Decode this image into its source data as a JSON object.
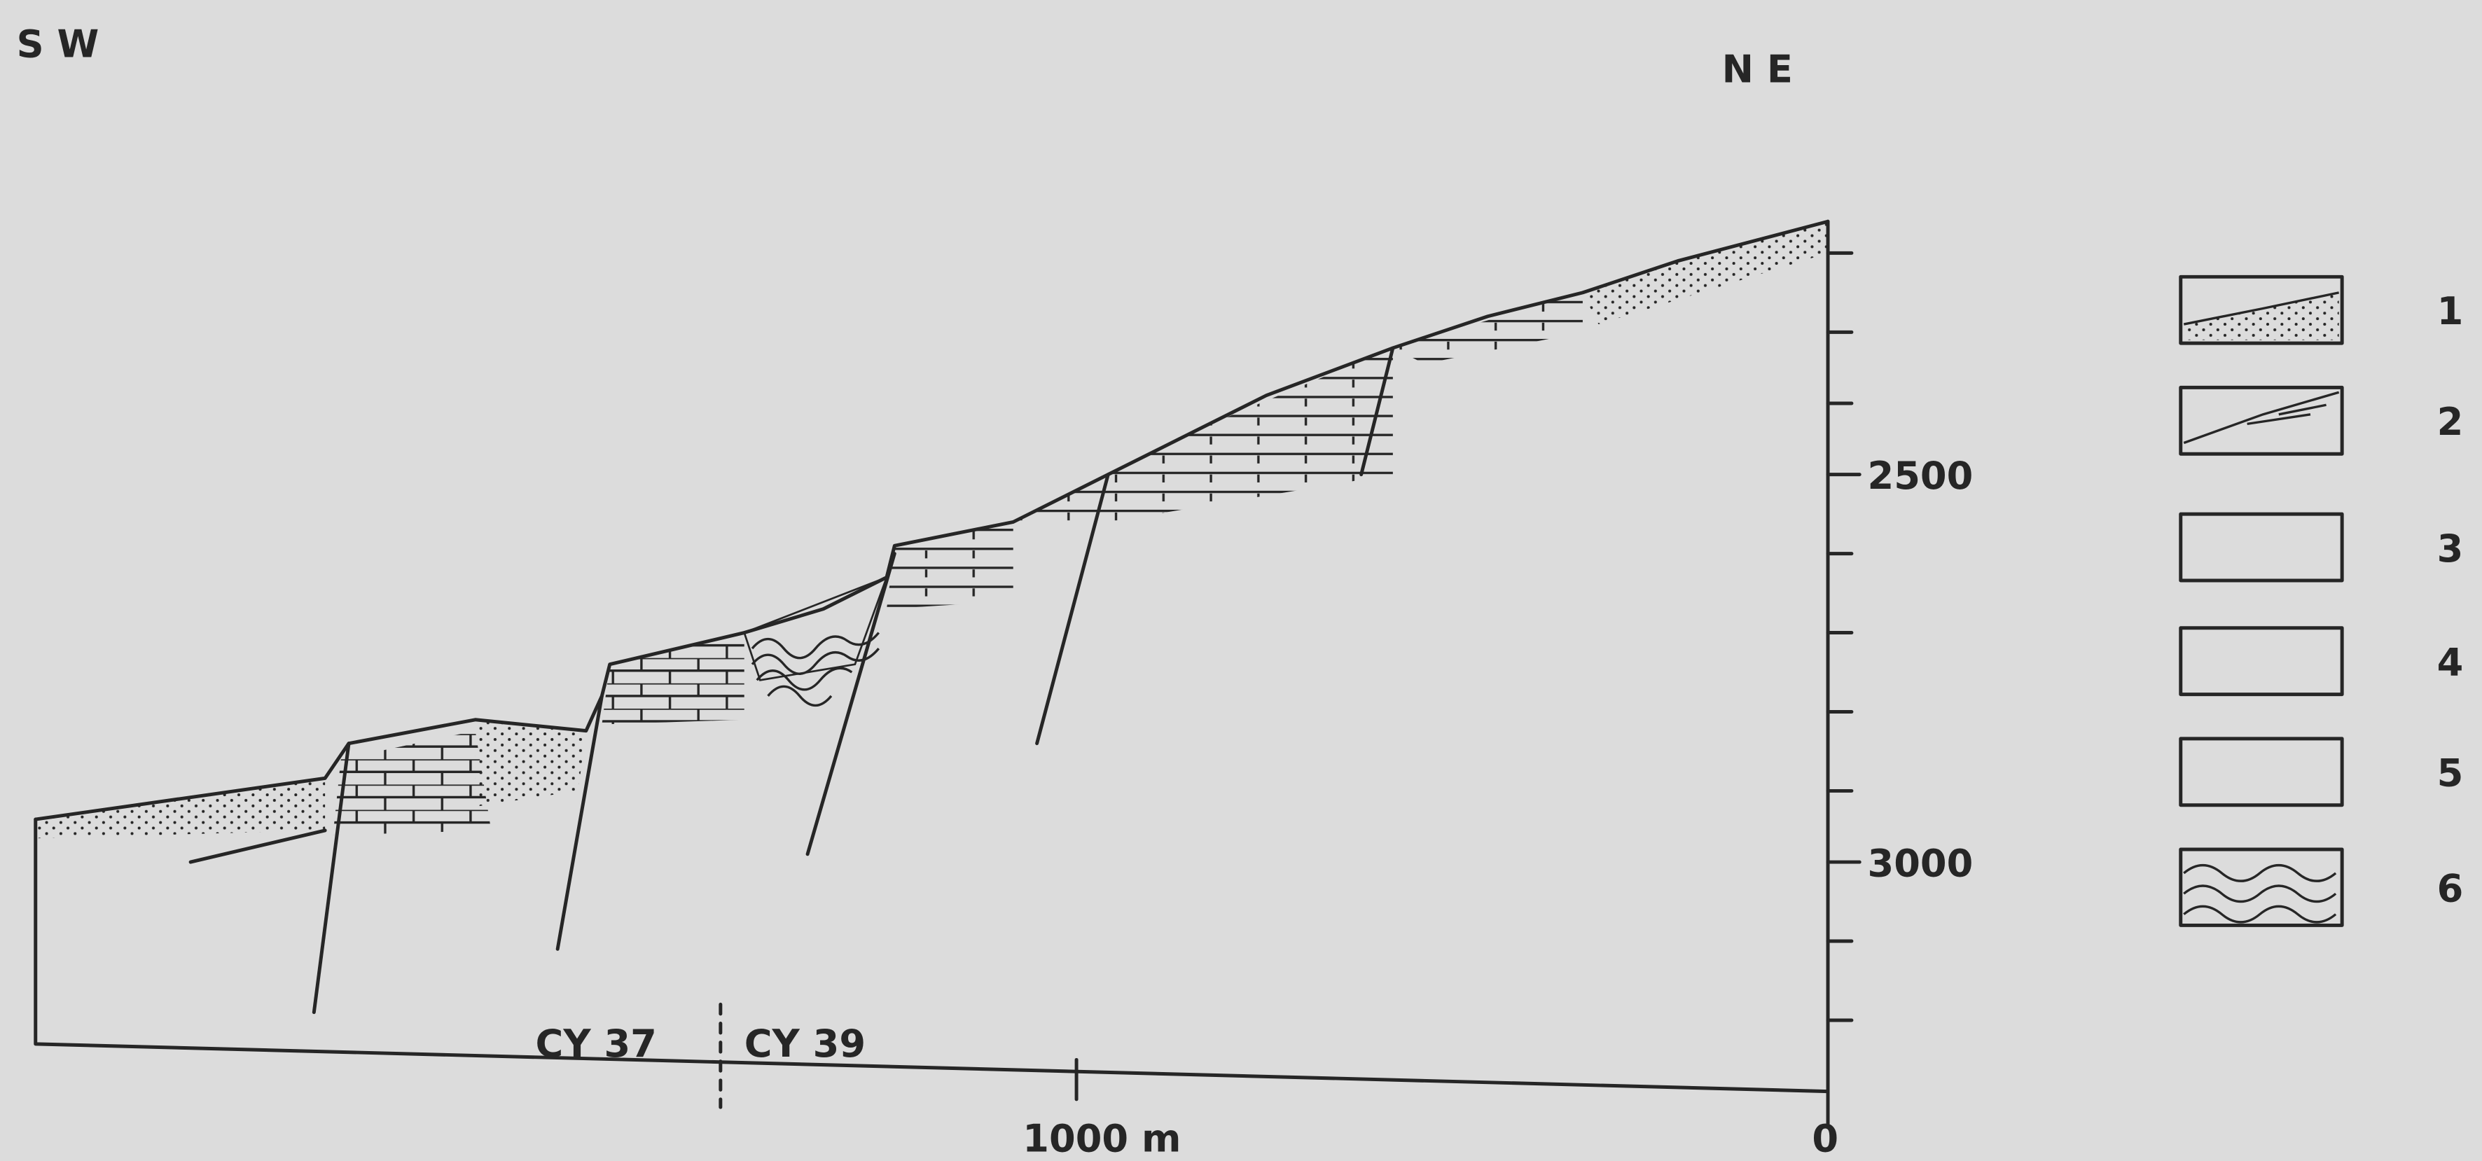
{
  "orientation": {
    "left": "S W",
    "right": "N E"
  },
  "depth_axis": {
    "ticks": [
      "2500",
      "3000"
    ]
  },
  "scale_bar": {
    "start": "0",
    "end": "1000 m"
  },
  "sections": [
    "CY 37",
    "CY 39"
  ],
  "legend": [
    "1",
    "2",
    "3",
    "4",
    "5",
    "6"
  ]
}
